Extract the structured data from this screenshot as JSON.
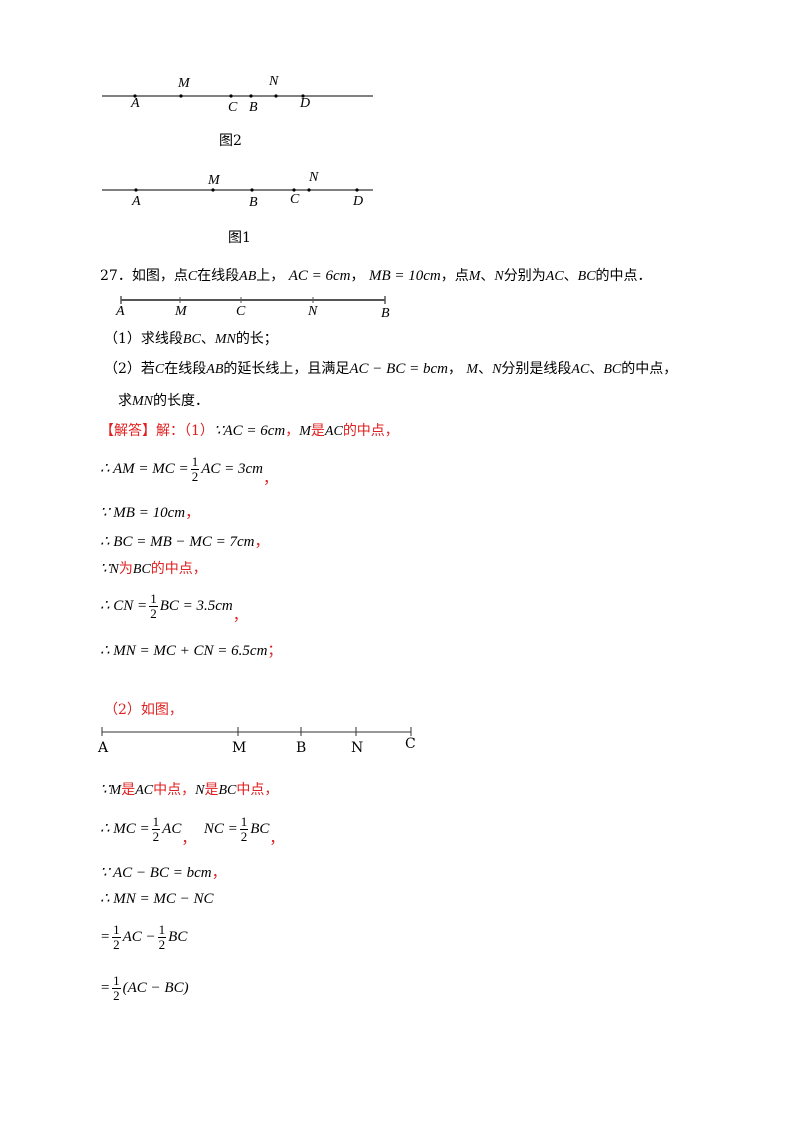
{
  "figures": {
    "fig2": {
      "caption": "图2",
      "points": [
        {
          "label": "A",
          "row": "below"
        },
        {
          "label": "M",
          "row": "above"
        },
        {
          "label": "C",
          "row": "below"
        },
        {
          "label": "B",
          "row": "below"
        },
        {
          "label": "N",
          "row": "above"
        },
        {
          "label": "D",
          "row": "below"
        }
      ]
    },
    "fig1": {
      "caption": "图1",
      "points": [
        {
          "label": "A",
          "row": "below"
        },
        {
          "label": "M",
          "row": "above"
        },
        {
          "label": "B",
          "row": "below"
        },
        {
          "label": "C",
          "row": "below"
        },
        {
          "label": "N",
          "row": "above"
        },
        {
          "label": "D",
          "row": "below"
        }
      ]
    },
    "fig_q27": {
      "labels": [
        "A",
        "M",
        "C",
        "N",
        "B"
      ]
    },
    "fig_sol2": {
      "labels": [
        "A",
        "M",
        "B",
        "N",
        "C"
      ]
    }
  },
  "question": {
    "number": "27．",
    "stem_a": "如图，点",
    "stem_c": "C",
    "stem_b": "在线段",
    "stem_ab": "AB",
    "stem_c2": "上，",
    "stem_ac": "AC = 6cm",
    "stem_sep1": "，",
    "stem_mb": "MB = 10cm",
    "stem_d": "，点",
    "stem_m": "M",
    "stem_e": "、",
    "stem_n": "N",
    "stem_f": "分别为",
    "stem_ac2": "AC",
    "stem_g": "、",
    "stem_bc": "BC",
    "stem_h": "的中点．",
    "part1_a": "（1）求线段",
    "part1_bc": "BC",
    "part1_b": "、",
    "part1_mn": "MN",
    "part1_c": "的长；",
    "part2_a": "（2）若",
    "part2_c": "C",
    "part2_b": "在线段",
    "part2_ab": "AB",
    "part2_c2": "的延长线上，且满足",
    "part2_eq": "AC − BC = bcm",
    "part2_d": "，",
    "part2_m": "M",
    "part2_e": "、",
    "part2_n": "N",
    "part2_f": "分别是线段",
    "part2_ac": "AC",
    "part2_g": "、",
    "part2_bc": "BC",
    "part2_h": "的中点，",
    "part2_line2_a": "求",
    "part2_line2_mn": "MN",
    "part2_line2_b": "的长度．"
  },
  "solution": {
    "heading": "【解答】解：（1）",
    "s1_because": "∵",
    "s1_eq": "AC = 6cm",
    "s1_sep": "，",
    "s1_m": "M",
    "s1_is": "是",
    "s1_ac": "AC",
    "s1_mid": "的中点，",
    "s2_left": "∴ AM = MC =",
    "s2_num": "1",
    "s2_den": "2",
    "s2_right": "AC = 3cm",
    "s2_end": "，",
    "s3": "∵ MB = 10cm",
    "s3_end": "，",
    "s4": "∴ BC = MB − MC = 7cm",
    "s4_end": "，",
    "s5_because": "∵",
    "s5_n": "N",
    "s5_is": "为",
    "s5_bc": "BC",
    "s5_mid": "的中点，",
    "s6_left": "∴ CN =",
    "s6_num": "1",
    "s6_den": "2",
    "s6_right": "BC = 3.5cm",
    "s6_end": "，",
    "s7": "∴ MN = MC + CN = 6.5cm",
    "s7_end": "；",
    "p2_heading": "（2）如图，",
    "t1_because": "∵",
    "t1_m": "M",
    "t1_is": "是",
    "t1_ac": "AC",
    "t1_mid": "中点，",
    "t1_n": "N",
    "t1_is2": "是",
    "t1_bc": "BC",
    "t1_mid2": "中点，",
    "t2_left": "∴ MC =",
    "t2_num": "1",
    "t2_den": "2",
    "t2_ac": "AC",
    "t2_sep": "，",
    "t2_nc": "NC =",
    "t2_num2": "1",
    "t2_den2": "2",
    "t2_bc": "BC",
    "t2_end": "，",
    "t3": "∵ AC − BC = bcm",
    "t3_end": "，",
    "t4": "∴ MN = MC − NC",
    "t5_eq": "=",
    "t5_num": "1",
    "t5_den": "2",
    "t5_ac": "AC −",
    "t5_num2": "1",
    "t5_den2": "2",
    "t5_bc": "BC",
    "t6_eq": "=",
    "t6_num": "1",
    "t6_den": "2",
    "t6_paren": "(AC − BC)"
  }
}
